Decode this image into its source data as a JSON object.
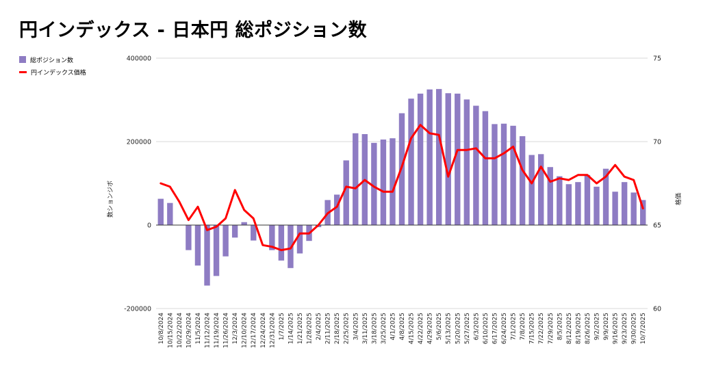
{
  "title": "円インデックス - 日本円 総ポジション数",
  "legend": {
    "bar_label": "総ポジション数",
    "line_label": "円インデックス価格"
  },
  "colors": {
    "bar": "#8e7cc3",
    "line": "#ff0000"
  },
  "chart_data": {
    "type": "bar",
    "title": "円インデックス - 日本円 総ポジション数",
    "ylabel_left": "数ションジボ",
    "ylabel_right": "格価",
    "ylim_left": [
      -200000,
      400000
    ],
    "yticks_left": [
      -200000,
      0,
      200000,
      400000
    ],
    "yticks_left_labels": [
      "-200000",
      "0",
      "200000",
      "400000"
    ],
    "ylim_right": [
      60,
      75
    ],
    "yticks_right": [
      60,
      65,
      70,
      75
    ],
    "yticks_right_labels": [
      "60",
      "65",
      "70",
      "75"
    ],
    "grid": true,
    "legend_position": "top-left",
    "categories": [
      "10/8/2024",
      "10/15/2024",
      "10/22/2024",
      "10/29/2024",
      "11/5/2024",
      "11/12/2024",
      "11/19/2024",
      "11/26/2024",
      "12/3/2024",
      "12/10/2024",
      "12/17/2024",
      "12/24/2024",
      "12/31/2024",
      "1/7/2025",
      "1/14/2025",
      "1/21/2025",
      "1/28/2025",
      "2/4/2025",
      "2/11/2025",
      "2/18/2025",
      "2/25/2025",
      "3/4/2025",
      "3/11/2025",
      "3/18/2025",
      "3/25/2025",
      "4/1/2025",
      "4/8/2025",
      "4/15/2025",
      "4/22/2025",
      "4/29/2025",
      "5/6/2025",
      "5/13/2025",
      "5/20/2025",
      "5/27/2025",
      "6/3/2025",
      "6/10/2025",
      "6/17/2025",
      "6/24/2025",
      "7/1/2025",
      "7/8/2025",
      "7/15/2025",
      "7/22/2025",
      "7/29/2025",
      "8/5/2025",
      "8/12/2025",
      "8/19/2025",
      "8/26/2025",
      "9/2/2025",
      "9/9/2025",
      "9/16/2025",
      "9/23/2025",
      "9/30/2025",
      "10/7/2025"
    ],
    "series": [
      {
        "name": "総ポジション数",
        "type": "bar",
        "axis": "left",
        "values": [
          63000,
          53000,
          0,
          -60000,
          -97000,
          -145000,
          -122000,
          -75000,
          -30000,
          7000,
          -37000,
          0,
          -60000,
          -85000,
          -103000,
          -68000,
          -38000,
          -5000,
          60000,
          73000,
          155000,
          220000,
          218000,
          197000,
          205000,
          208000,
          268000,
          303000,
          315000,
          325000,
          326000,
          316000,
          315000,
          301000,
          286000,
          273000,
          242000,
          243000,
          238000,
          213000,
          168000,
          170000,
          139000,
          117000,
          98000,
          103000,
          120000,
          92000,
          135000,
          80000,
          103000,
          78000,
          60000
        ]
      },
      {
        "name": "円インデックス価格",
        "type": "line",
        "axis": "right",
        "values": [
          67.5,
          67.3,
          66.4,
          65.3,
          66.1,
          64.7,
          64.9,
          65.4,
          67.1,
          65.9,
          65.4,
          63.8,
          63.7,
          63.5,
          63.6,
          64.5,
          64.5,
          65.0,
          65.7,
          66.1,
          67.3,
          67.2,
          67.7,
          67.3,
          67.0,
          67.0,
          68.5,
          70.2,
          71.0,
          70.5,
          70.4,
          67.9,
          69.5,
          69.5,
          69.6,
          69.0,
          69.0,
          69.3,
          69.7,
          68.3,
          67.5,
          68.5,
          67.6,
          67.8,
          67.7,
          68.0,
          68.0,
          67.5,
          67.9,
          68.6,
          67.9,
          67.7,
          66.0
        ]
      }
    ]
  }
}
